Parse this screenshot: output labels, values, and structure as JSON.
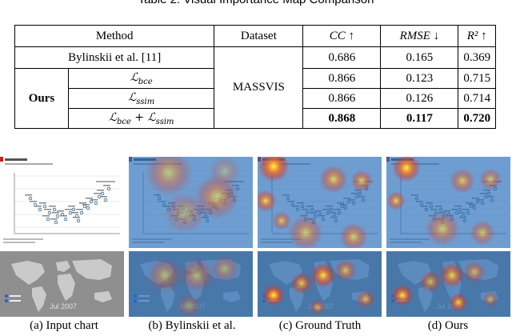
{
  "caption": "Table 2: Visual Importance Map Comparison",
  "table": {
    "headers": [
      "Method",
      "Dataset",
      "CC ↑",
      "RMSE ↓",
      "R² ↑"
    ],
    "dataset": "MASSVIS",
    "ours_label": "Ours",
    "baseline": {
      "method": "Bylinskii et al. [11]",
      "cc": "0.686",
      "rmse": "0.165",
      "r2": "0.369"
    },
    "ours_rows": [
      {
        "method": "ℒbce",
        "cc": "0.866",
        "rmse": "0.123",
        "r2": "0.715"
      },
      {
        "method": "ℒssim",
        "cc": "0.866",
        "rmse": "0.126",
        "r2": "0.714"
      },
      {
        "method": "ℒbce + ℒssim",
        "cc": "0.868",
        "rmse": "0.117",
        "r2": "0.720"
      }
    ]
  },
  "figure": {
    "map_year": "Jul 2007",
    "subcaptions": [
      "(a) Input chart",
      "(b) Bylinskii et al.",
      "(c) Ground Truth",
      "(d) Ours"
    ]
  }
}
